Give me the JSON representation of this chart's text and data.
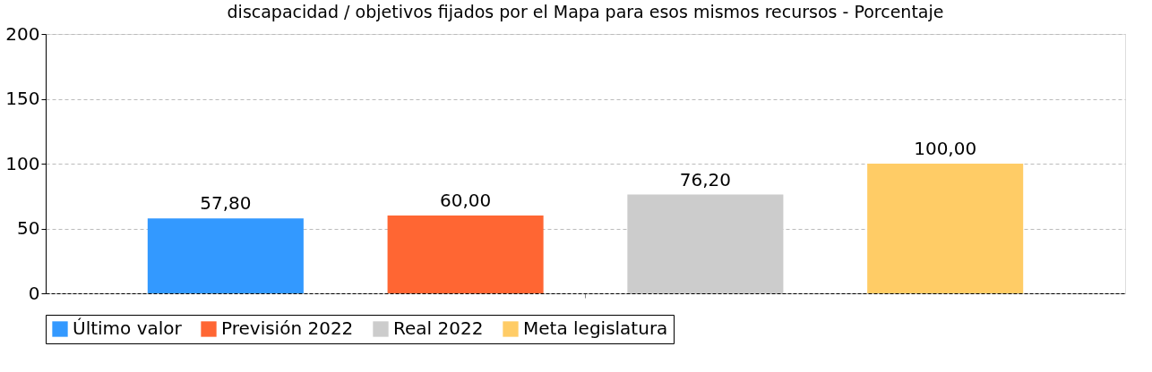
{
  "chart_data": {
    "type": "bar",
    "title": "discapacidad / objetivos fijados por el Mapa para esos mismos recursos - Porcentaje",
    "categories": [
      null
    ],
    "series": [
      {
        "name": "Último valor",
        "color": "#3399ff",
        "values": [
          57.8
        ],
        "value_labels": [
          "57,80"
        ]
      },
      {
        "name": "Previsión 2022",
        "color": "#ff6633",
        "values": [
          60.0
        ],
        "value_labels": [
          "60,00"
        ]
      },
      {
        "name": "Real 2022",
        "color": "#cccccc",
        "values": [
          76.2
        ],
        "value_labels": [
          "76,20"
        ]
      },
      {
        "name": "Meta legislatura",
        "color": "#ffcc66",
        "values": [
          100.0
        ],
        "value_labels": [
          "100,00"
        ]
      }
    ],
    "ylim": [
      0,
      200
    ],
    "yticks": [
      0,
      50,
      100,
      150,
      200
    ],
    "grid": "y",
    "legend": "bottom",
    "tick_labels": "y"
  }
}
